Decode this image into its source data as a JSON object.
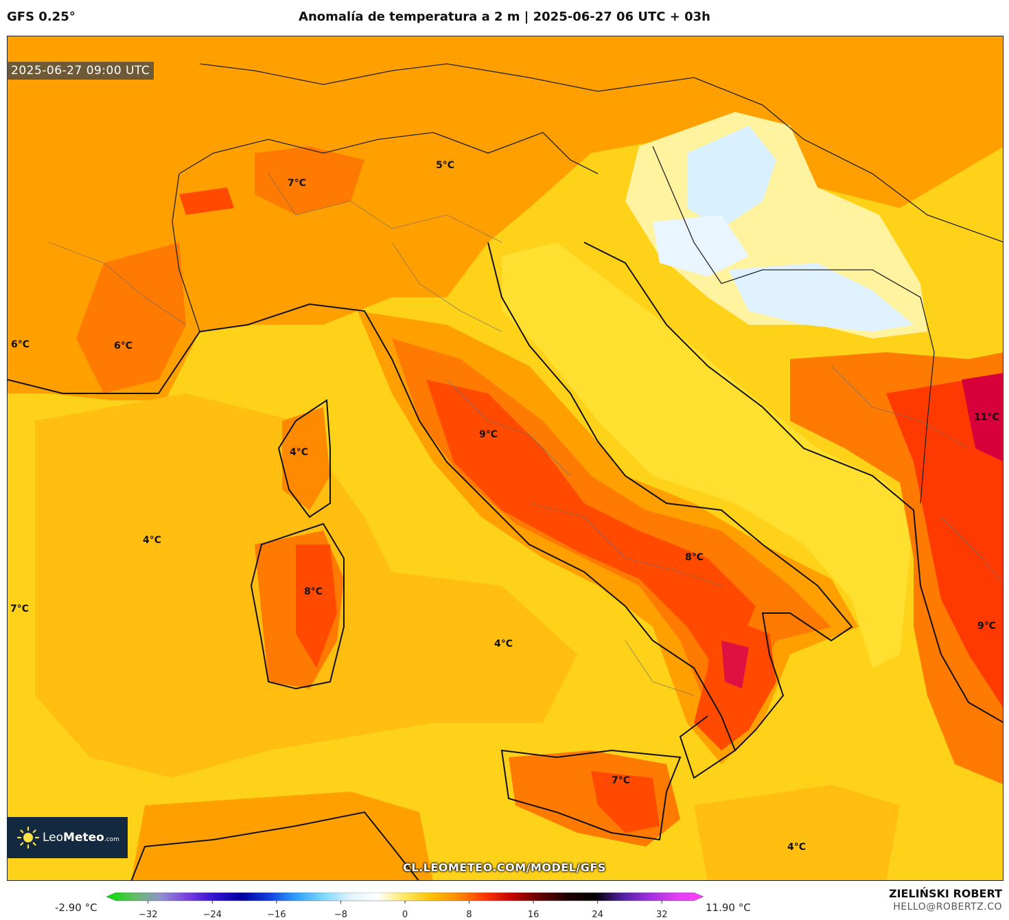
{
  "header": {
    "model": "GFS 0.25°",
    "title": "Anomalía de temperatura a 2 m | 2025-06-27 06 UTC + 03h"
  },
  "map": {
    "valid_time": "2025-06-27 09:00 UTC",
    "labels": [
      "6°C",
      "6°C",
      "7°C",
      "5°C",
      "4°C",
      "4°C",
      "8°C",
      "9°C",
      "8°C",
      "11°C",
      "9°C",
      "4°C",
      "7°C",
      "7°C",
      "4°C"
    ],
    "watermark": "CL.LEOMETEO.COM/MODEL/GFS",
    "logo": {
      "brand_a": "Leo",
      "brand_b": "Meteo",
      "brand_c": ".com"
    }
  },
  "colorbar": {
    "min_label": "-2.90 °C",
    "max_label": "11.90 °C",
    "ticks": [
      "−32",
      "−24",
      "−16",
      "−8",
      "0",
      "8",
      "16",
      "24",
      "32"
    ],
    "tick_values": [
      -32,
      -24,
      -16,
      -8,
      0,
      8,
      16,
      24,
      32
    ],
    "range": [
      -36,
      36
    ],
    "colors": [
      "#00e000",
      "#60c060",
      "#9090d0",
      "#7a40e0",
      "#3010d0",
      "#0000a0",
      "#1040e0",
      "#30a0ff",
      "#80d8ff",
      "#e0f4ff",
      "#ffffff",
      "#ffe860",
      "#ffc000",
      "#ff8800",
      "#ff3000",
      "#c00000",
      "#600000",
      "#200000",
      "#000000",
      "#5020a0",
      "#a030e0",
      "#e040f0",
      "#ff40ff"
    ]
  },
  "author": {
    "name": "ZIELIŃSKI ROBERT",
    "email": "HELLO@ROBERTZ.CO"
  }
}
